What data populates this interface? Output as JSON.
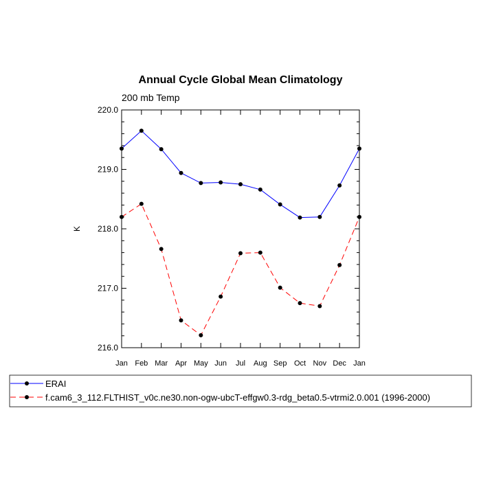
{
  "chart_data": {
    "type": "line",
    "title": "Annual Cycle Global Mean Climatology",
    "subtitle": "200 mb Temp",
    "xlabel": "",
    "ylabel": "K",
    "categories": [
      "Jan",
      "Feb",
      "Mar",
      "Apr",
      "May",
      "Jun",
      "Jul",
      "Aug",
      "Sep",
      "Oct",
      "Nov",
      "Dec",
      "Jan"
    ],
    "ylim": [
      216.0,
      220.0
    ],
    "yticks": [
      "216.0",
      "217.0",
      "218.0",
      "219.0",
      "220.0"
    ],
    "grid": false,
    "legend_position": "bottom",
    "series": [
      {
        "name": "ERAI",
        "color": "#0000ff",
        "dash": "solid",
        "marker": "filled-circle",
        "values": [
          219.35,
          219.65,
          219.34,
          218.94,
          218.77,
          218.78,
          218.75,
          218.66,
          218.41,
          218.19,
          218.2,
          218.73,
          219.35
        ]
      },
      {
        "name": "f.cam6_3_112.FLTHIST_v0c.ne30.non-ogw-ubcT-effgw0.3-rdg_beta0.5-vtrmi2.0.001 (1996-2000)",
        "color": "#ff0000",
        "dash": "dashed",
        "marker": "filled-circle",
        "values": [
          218.2,
          218.42,
          217.66,
          216.46,
          216.21,
          216.86,
          217.59,
          217.6,
          217.01,
          216.75,
          216.7,
          217.39,
          218.2
        ]
      }
    ]
  }
}
